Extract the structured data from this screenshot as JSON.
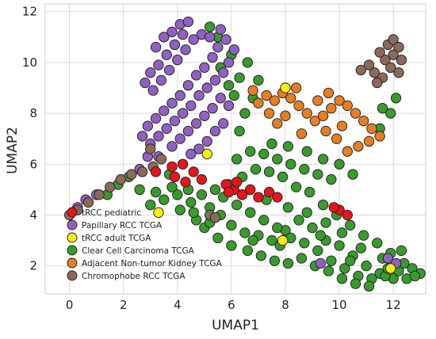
{
  "chart_data": {
    "type": "scatter",
    "title": "",
    "xlabel": "UMAP1",
    "ylabel": "UMAP2",
    "xlim": [
      -0.9,
      13.2
    ],
    "ylim": [
      0.9,
      12.3
    ],
    "xticks": [
      0,
      2,
      4,
      6,
      8,
      10,
      12
    ],
    "yticks": [
      2,
      4,
      6,
      8,
      10,
      12
    ],
    "grid": true,
    "legend_position": "bottom-left",
    "series": [
      {
        "name": "Clear Cell Carcinoma TCGA",
        "color": "#3a9a2e",
        "points": [
          [
            5.2,
            4.3
          ],
          [
            5.6,
            4.0
          ],
          [
            6.0,
            3.6
          ],
          [
            6.5,
            3.3
          ],
          [
            7.0,
            3.2
          ],
          [
            7.5,
            3.0
          ],
          [
            8.0,
            3.4
          ],
          [
            8.5,
            3.8
          ],
          [
            9.0,
            3.5
          ],
          [
            9.5,
            3.0
          ],
          [
            10.0,
            2.8
          ],
          [
            10.5,
            2.4
          ],
          [
            11.0,
            2.0
          ],
          [
            11.5,
            1.7
          ],
          [
            12.0,
            1.5
          ],
          [
            12.5,
            1.5
          ],
          [
            13.0,
            1.7
          ],
          [
            12.7,
            1.9
          ],
          [
            12.2,
            1.8
          ],
          [
            11.7,
            1.6
          ],
          [
            11.2,
            1.5
          ],
          [
            10.7,
            1.6
          ],
          [
            10.2,
            1.9
          ],
          [
            9.7,
            2.2
          ],
          [
            9.2,
            2.6
          ],
          [
            8.7,
            2.9
          ],
          [
            8.2,
            3.1
          ],
          [
            7.7,
            3.5
          ],
          [
            7.2,
            3.8
          ],
          [
            6.7,
            4.1
          ],
          [
            6.2,
            4.4
          ],
          [
            5.7,
            4.7
          ],
          [
            5.4,
            5.0
          ],
          [
            5.9,
            5.2
          ],
          [
            6.4,
            5.5
          ],
          [
            6.9,
            5.8
          ],
          [
            7.4,
            5.7
          ],
          [
            7.9,
            5.5
          ],
          [
            8.4,
            5.1
          ],
          [
            8.9,
            4.9
          ],
          [
            9.4,
            4.4
          ],
          [
            9.9,
            4.0
          ],
          [
            10.4,
            3.6
          ],
          [
            10.9,
            3.2
          ],
          [
            11.4,
            2.9
          ],
          [
            11.9,
            2.5
          ],
          [
            12.4,
            2.1
          ],
          [
            4.0,
            4.8
          ],
          [
            4.5,
            4.5
          ],
          [
            3.5,
            4.6
          ],
          [
            3.0,
            4.4
          ],
          [
            3.2,
            4.9
          ],
          [
            3.8,
            5.1
          ],
          [
            4.4,
            5.0
          ],
          [
            4.9,
            4.8
          ],
          [
            4.7,
            3.8
          ],
          [
            5.0,
            3.5
          ],
          [
            5.5,
            3.1
          ],
          [
            6.0,
            2.8
          ],
          [
            6.6,
            2.6
          ],
          [
            7.1,
            2.4
          ],
          [
            7.6,
            2.2
          ],
          [
            8.1,
            2.1
          ],
          [
            8.6,
            2.3
          ],
          [
            9.1,
            2.0
          ],
          [
            9.6,
            1.8
          ],
          [
            10.1,
            1.5
          ],
          [
            10.6,
            1.3
          ],
          [
            11.1,
            1.2
          ],
          [
            6.2,
            6.2
          ],
          [
            6.7,
            6.5
          ],
          [
            7.2,
            6.4
          ],
          [
            7.7,
            6.2
          ],
          [
            8.2,
            6.0
          ],
          [
            8.7,
            5.8
          ],
          [
            9.2,
            5.6
          ],
          [
            9.7,
            5.4
          ],
          [
            6.3,
            7.3
          ],
          [
            6.5,
            8.0
          ],
          [
            6.1,
            8.7
          ],
          [
            6.3,
            9.4
          ],
          [
            6.6,
            10.0
          ],
          [
            6.0,
            10.3
          ],
          [
            5.6,
            9.8
          ],
          [
            5.9,
            9.1
          ],
          [
            6.8,
            8.6
          ],
          [
            7.0,
            9.3
          ],
          [
            5.5,
            11.0
          ],
          [
            5.2,
            11.4
          ],
          [
            6.4,
            4.8
          ],
          [
            7.3,
            4.6
          ],
          [
            8.1,
            4.3
          ],
          [
            8.8,
            4.1
          ],
          [
            9.5,
            3.7
          ],
          [
            10.1,
            3.3
          ],
          [
            10.8,
            2.7
          ],
          [
            11.6,
            2.3
          ],
          [
            12.3,
            2.6
          ],
          [
            4.1,
            4.2
          ],
          [
            4.6,
            4.1
          ],
          [
            5.2,
            3.7
          ],
          [
            6.8,
            3.0
          ],
          [
            7.8,
            2.8
          ],
          [
            9.3,
            3.2
          ],
          [
            10.4,
            2.2
          ],
          [
            11.8,
            1.9
          ],
          [
            12.8,
            1.6
          ],
          [
            2.6,
            5.0
          ],
          [
            2.2,
            5.5
          ],
          [
            1.8,
            5.2
          ],
          [
            1.4,
            4.8
          ],
          [
            3.7,
            5.6
          ],
          [
            7.5,
            6.8
          ],
          [
            8.1,
            6.7
          ],
          [
            8.8,
            6.5
          ],
          [
            9.4,
            6.2
          ],
          [
            10.0,
            6.0
          ],
          [
            10.5,
            5.6
          ],
          [
            11.5,
            7.4
          ],
          [
            11.9,
            8.0
          ],
          [
            12.1,
            8.6
          ],
          [
            11.6,
            8.2
          ]
        ]
      },
      {
        "name": "Papillary RCC TCGA",
        "color": "#9060c2",
        "points": [
          [
            3.2,
            10.6
          ],
          [
            3.5,
            11.0
          ],
          [
            3.8,
            11.2
          ],
          [
            4.1,
            11.5
          ],
          [
            4.4,
            11.6
          ],
          [
            4.2,
            11.1
          ],
          [
            3.9,
            10.7
          ],
          [
            3.6,
            10.3
          ],
          [
            3.3,
            9.9
          ],
          [
            3.0,
            9.6
          ],
          [
            2.8,
            9.2
          ],
          [
            3.1,
            8.9
          ],
          [
            3.4,
            9.3
          ],
          [
            3.7,
            9.7
          ],
          [
            4.0,
            10.1
          ],
          [
            4.3,
            10.5
          ],
          [
            4.6,
            10.9
          ],
          [
            4.9,
            11.1
          ],
          [
            5.2,
            11.0
          ],
          [
            5.5,
            10.6
          ],
          [
            5.3,
            10.2
          ],
          [
            5.0,
            9.8
          ],
          [
            4.7,
            9.5
          ],
          [
            4.4,
            9.1
          ],
          [
            4.1,
            8.7
          ],
          [
            3.8,
            8.4
          ],
          [
            3.5,
            8.1
          ],
          [
            3.2,
            7.8
          ],
          [
            2.9,
            7.5
          ],
          [
            2.7,
            7.1
          ],
          [
            3.0,
            6.8
          ],
          [
            3.3,
            7.1
          ],
          [
            3.6,
            7.4
          ],
          [
            3.9,
            7.7
          ],
          [
            4.2,
            8.0
          ],
          [
            4.5,
            8.3
          ],
          [
            4.8,
            8.7
          ],
          [
            5.1,
            9.0
          ],
          [
            5.4,
            9.3
          ],
          [
            5.7,
            9.6
          ],
          [
            5.9,
            10.0
          ],
          [
            6.1,
            10.5
          ],
          [
            5.8,
            10.9
          ],
          [
            5.6,
            11.3
          ],
          [
            5.3,
            8.2
          ],
          [
            5.0,
            7.9
          ],
          [
            4.7,
            7.6
          ],
          [
            4.4,
            7.3
          ],
          [
            4.1,
            7.0
          ],
          [
            3.8,
            6.7
          ],
          [
            2.9,
            6.3
          ],
          [
            2.6,
            5.8
          ],
          [
            3.3,
            6.3
          ],
          [
            5.6,
            8.6
          ],
          [
            5.9,
            8.3
          ],
          [
            5.7,
            7.6
          ],
          [
            5.4,
            7.3
          ],
          [
            5.1,
            6.9
          ],
          [
            4.8,
            6.6
          ],
          [
            4.5,
            6.4
          ],
          [
            11.8,
            2.3
          ],
          [
            12.1,
            2.1
          ],
          [
            9.3,
            2.1
          ],
          [
            0.3,
            4.3
          ],
          [
            0.6,
            4.6
          ],
          [
            1.0,
            4.8
          ]
        ]
      },
      {
        "name": "Adjacent Non-tumor Kidney TCGA",
        "color": "#e67e22",
        "points": [
          [
            7.0,
            8.4
          ],
          [
            7.3,
            8.7
          ],
          [
            7.6,
            8.5
          ],
          [
            7.9,
            8.8
          ],
          [
            8.2,
            8.6
          ],
          [
            8.5,
            8.3
          ],
          [
            8.8,
            8.0
          ],
          [
            9.1,
            7.7
          ],
          [
            9.4,
            7.9
          ],
          [
            9.7,
            8.2
          ],
          [
            10.0,
            8.5
          ],
          [
            10.3,
            8.3
          ],
          [
            10.6,
            8.0
          ],
          [
            10.9,
            7.7
          ],
          [
            11.2,
            7.4
          ],
          [
            11.5,
            7.1
          ],
          [
            11.1,
            6.9
          ],
          [
            10.7,
            6.7
          ],
          [
            10.3,
            6.5
          ],
          [
            9.9,
            7.0
          ],
          [
            9.5,
            7.3
          ],
          [
            9.2,
            8.5
          ],
          [
            9.6,
            8.8
          ],
          [
            8.0,
            7.9
          ],
          [
            7.7,
            7.6
          ],
          [
            7.4,
            8.0
          ],
          [
            8.6,
            7.2
          ],
          [
            10.1,
            7.5
          ],
          [
            6.8,
            8.9
          ],
          [
            8.4,
            9.0
          ]
        ]
      },
      {
        "name": "Chromophobe RCC TCGA",
        "color": "#8b6a5c",
        "points": [
          [
            11.8,
            10.7
          ],
          [
            12.0,
            10.9
          ],
          [
            12.2,
            10.6
          ],
          [
            12.0,
            10.3
          ],
          [
            11.7,
            10.1
          ],
          [
            11.9,
            9.8
          ],
          [
            12.2,
            9.6
          ],
          [
            11.6,
            9.4
          ],
          [
            11.3,
            9.6
          ],
          [
            11.1,
            9.9
          ],
          [
            12.3,
            10.1
          ],
          [
            11.5,
            10.4
          ],
          [
            10.8,
            9.7
          ],
          [
            11.4,
            9.2
          ],
          [
            0.0,
            4.0
          ],
          [
            0.3,
            4.2
          ],
          [
            0.7,
            4.5
          ],
          [
            1.1,
            4.8
          ],
          [
            1.5,
            5.1
          ],
          [
            1.9,
            5.4
          ],
          [
            2.3,
            5.6
          ],
          [
            2.7,
            5.7
          ],
          [
            3.1,
            5.9
          ],
          [
            3.4,
            6.2
          ],
          [
            3.0,
            6.6
          ],
          [
            5.2,
            4.0
          ],
          [
            5.4,
            3.9
          ]
        ]
      },
      {
        "name": "tRCC pediatric",
        "color": "#e8141c",
        "points": [
          [
            3.2,
            5.7
          ],
          [
            3.8,
            5.9
          ],
          [
            4.2,
            6.0
          ],
          [
            4.6,
            5.7
          ],
          [
            4.9,
            5.4
          ],
          [
            4.3,
            5.3
          ],
          [
            3.9,
            5.5
          ],
          [
            5.8,
            5.2
          ],
          [
            6.1,
            5.0
          ],
          [
            6.4,
            4.8
          ],
          [
            6.7,
            5.0
          ],
          [
            7.0,
            4.7
          ],
          [
            7.4,
            4.9
          ],
          [
            7.7,
            4.7
          ],
          [
            6.2,
            5.3
          ],
          [
            5.9,
            4.9
          ],
          [
            10.0,
            4.2
          ],
          [
            10.3,
            4.0
          ],
          [
            9.8,
            4.3
          ]
        ]
      },
      {
        "name": "tRCC adult",
        "color": "#f5ee12",
        "points": [
          [
            5.1,
            6.4
          ],
          [
            8.0,
            9.0
          ],
          [
            3.3,
            4.1
          ],
          [
            7.9,
            3.0
          ],
          [
            11.9,
            1.9
          ]
        ]
      }
    ]
  }
}
